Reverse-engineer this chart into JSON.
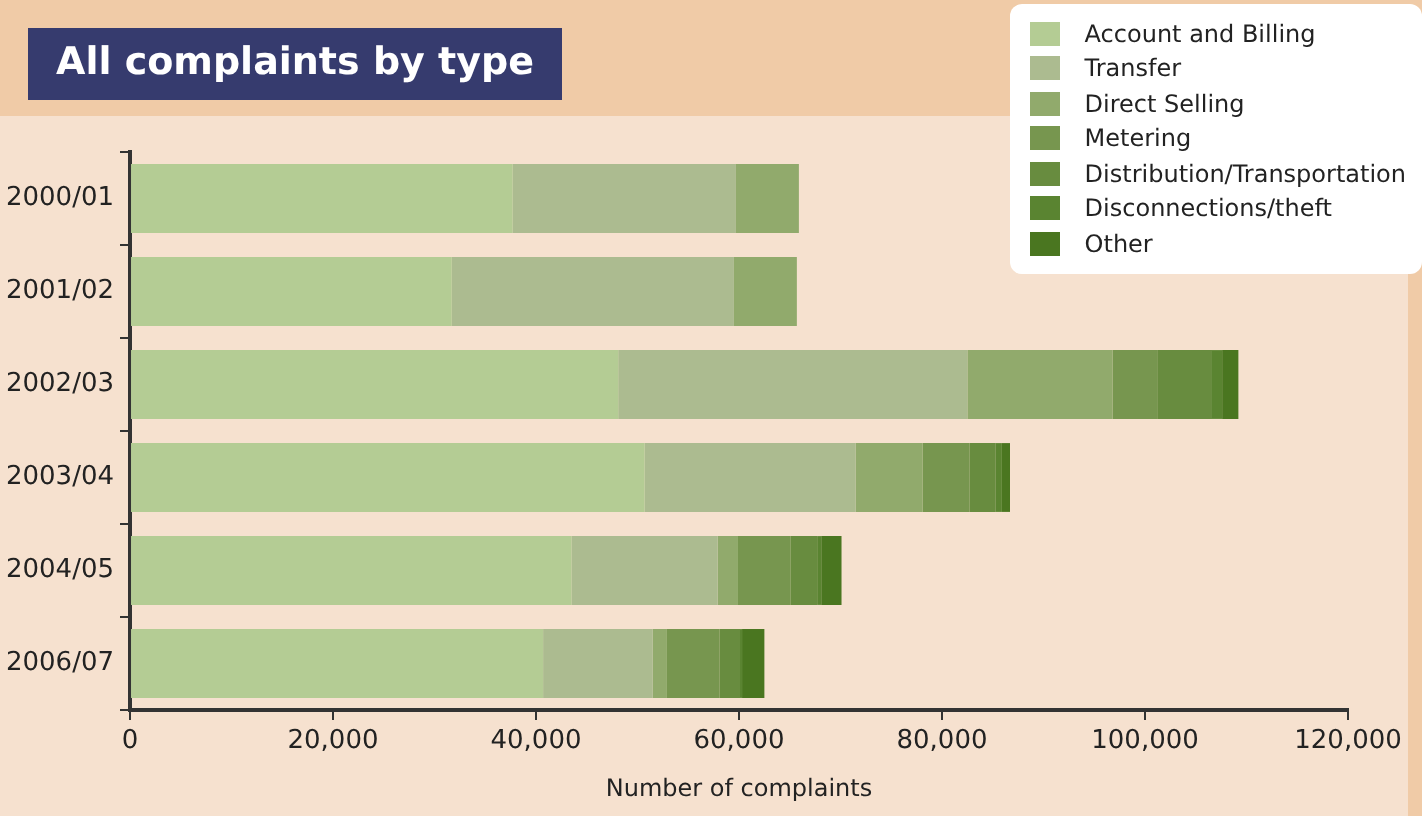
{
  "chart_data": {
    "type": "bar",
    "orientation": "horizontal",
    "stacked": true,
    "title": "All complaints by type",
    "xlabel": "Number of complaints",
    "categories": [
      "2000/01",
      "2001/02",
      "2002/03",
      "2003/04",
      "2004/05",
      "2006/07"
    ],
    "series": [
      {
        "name": "Account and Billing",
        "color": "#b4cc94",
        "values": [
          37700,
          31700,
          48100,
          50700,
          43500,
          40700
        ]
      },
      {
        "name": "Transfer",
        "color": "#acbb90",
        "values": [
          22000,
          27800,
          34400,
          20800,
          14400,
          10800
        ]
      },
      {
        "name": "Direct Selling",
        "color": "#91aa6c",
        "values": [
          6200,
          6200,
          14300,
          6600,
          2000,
          1400
        ]
      },
      {
        "name": "Metering",
        "color": "#77964f",
        "values": [
          null,
          null,
          4400,
          4600,
          5200,
          5200
        ]
      },
      {
        "name": "Distribution/Transportation",
        "color": "#688c3f",
        "values": [
          null,
          null,
          5400,
          2600,
          2600,
          2000
        ]
      },
      {
        "name": "Disconnections/theft",
        "color": "#5a8431",
        "values": [
          null,
          null,
          1000,
          600,
          400,
          200
        ]
      },
      {
        "name": "Other",
        "color": "#4a7620",
        "values": [
          null,
          null,
          1600,
          800,
          2000,
          2200
        ]
      }
    ],
    "xlim": [
      0,
      120000
    ],
    "xticks": [
      {
        "value": 0,
        "label": "0"
      },
      {
        "value": 20000,
        "label": "20,000"
      },
      {
        "value": 40000,
        "label": "40,000"
      },
      {
        "value": 60000,
        "label": "60,000"
      },
      {
        "value": 80000,
        "label": "80,000"
      },
      {
        "value": 100000,
        "label": "100,000"
      },
      {
        "value": 120000,
        "label": "120,000"
      }
    ],
    "grid": false,
    "legend": "top right"
  }
}
